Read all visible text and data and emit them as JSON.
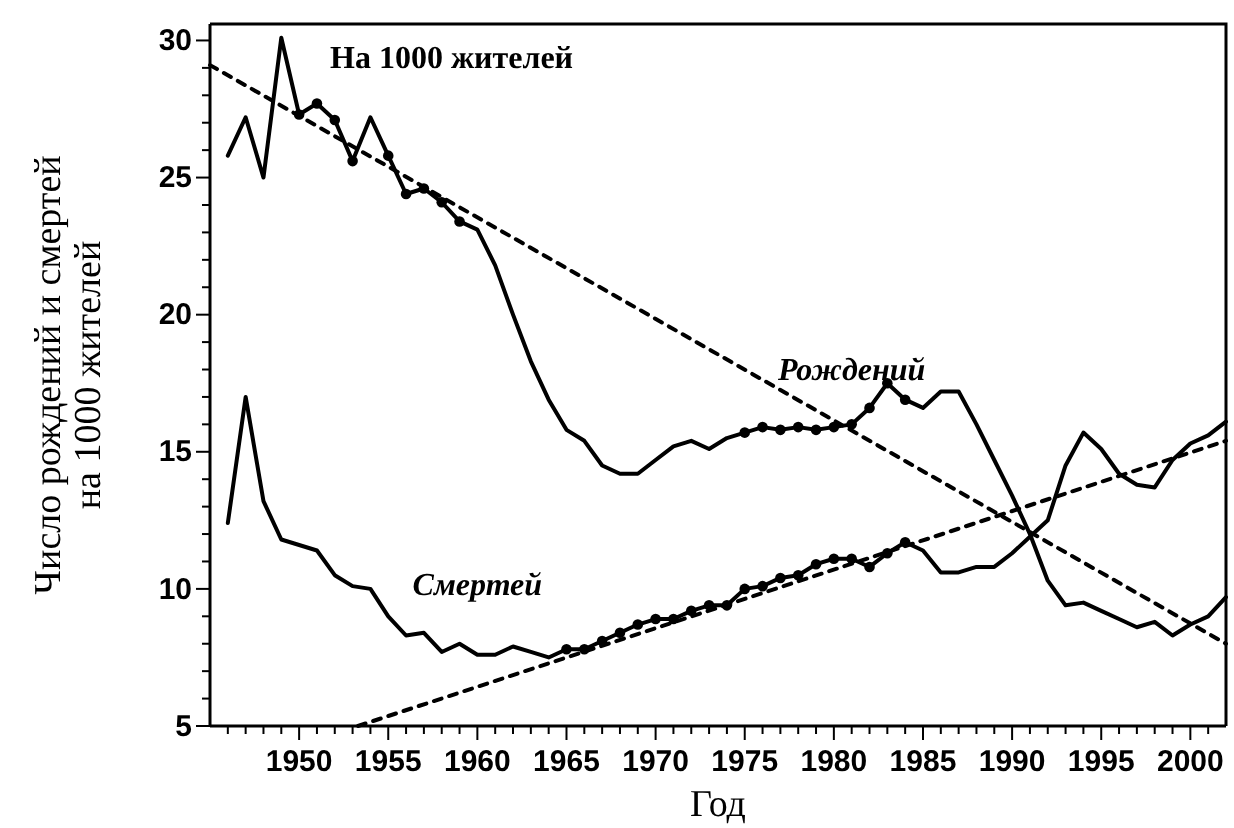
{
  "chart_data": {
    "type": "line",
    "title": "На 1000 жителей",
    "xlabel": "Год",
    "ylabel": "Число рождений и смертей на 1000 жителей",
    "xlim": [
      1945,
      2002
    ],
    "ylim": [
      5,
      30.6
    ],
    "xticks": [
      {
        "value": 1946,
        "label": null
      },
      {
        "value": 1947,
        "label": null
      },
      {
        "value": 1948,
        "label": null
      },
      {
        "value": 1949,
        "label": null
      },
      1950,
      {
        "value": 1951,
        "label": null
      },
      {
        "value": 1952,
        "label": null
      },
      {
        "value": 1953,
        "label": null
      },
      {
        "value": 1954,
        "label": null
      },
      1955,
      {
        "value": 1956,
        "label": null
      },
      {
        "value": 1957,
        "label": null
      },
      {
        "value": 1958,
        "label": null
      },
      {
        "value": 1959,
        "label": null
      },
      1960,
      {
        "value": 1961,
        "label": null
      },
      {
        "value": 1962,
        "label": null
      },
      {
        "value": 1963,
        "label": null
      },
      {
        "value": 1964,
        "label": null
      },
      1965,
      {
        "value": 1966,
        "label": null
      },
      {
        "value": 1967,
        "label": null
      },
      {
        "value": 1968,
        "label": null
      },
      {
        "value": 1969,
        "label": null
      },
      1970,
      {
        "value": 1971,
        "label": null
      },
      {
        "value": 1972,
        "label": null
      },
      {
        "value": 1973,
        "label": null
      },
      {
        "value": 1974,
        "label": null
      },
      1975,
      {
        "value": 1976,
        "label": null
      },
      {
        "value": 1977,
        "label": null
      },
      {
        "value": 1978,
        "label": null
      },
      {
        "value": 1979,
        "label": null
      },
      1980,
      {
        "value": 1981,
        "label": null
      },
      {
        "value": 1982,
        "label": null
      },
      {
        "value": 1983,
        "label": null
      },
      {
        "value": 1984,
        "label": null
      },
      1985,
      {
        "value": 1986,
        "label": null
      },
      {
        "value": 1987,
        "label": null
      },
      {
        "value": 1988,
        "label": null
      },
      {
        "value": 1989,
        "label": null
      },
      1990,
      {
        "value": 1991,
        "label": null
      },
      {
        "value": 1992,
        "label": null
      },
      {
        "value": 1993,
        "label": null
      },
      {
        "value": 1994,
        "label": null
      },
      1995,
      {
        "value": 1996,
        "label": null
      },
      {
        "value": 1997,
        "label": null
      },
      {
        "value": 1998,
        "label": null
      },
      {
        "value": 1999,
        "label": null
      },
      2000,
      {
        "value": 2001,
        "label": null
      }
    ],
    "yticks": [
      5,
      {
        "value": 6,
        "label": null
      },
      {
        "value": 7,
        "label": null
      },
      {
        "value": 8,
        "label": null
      },
      {
        "value": 9,
        "label": null
      },
      10,
      {
        "value": 11,
        "label": null
      },
      {
        "value": 12,
        "label": null
      },
      {
        "value": 13,
        "label": null
      },
      {
        "value": 14,
        "label": null
      },
      15,
      {
        "value": 16,
        "label": null
      },
      {
        "value": 17,
        "label": null
      },
      {
        "value": 18,
        "label": null
      },
      {
        "value": 19,
        "label": null
      },
      20,
      {
        "value": 21,
        "label": null
      },
      {
        "value": 22,
        "label": null
      },
      {
        "value": 23,
        "label": null
      },
      {
        "value": 24,
        "label": null
      },
      25,
      {
        "value": 26,
        "label": null
      },
      {
        "value": 27,
        "label": null
      },
      {
        "value": 28,
        "label": null
      },
      {
        "value": 29,
        "label": null
      },
      30
    ],
    "grid": false,
    "marker": "none",
    "line_style": "solid",
    "series": [
      {
        "name": "Рождений",
        "color": "#000000",
        "x": [
          1946,
          1947,
          1948,
          1949,
          1950,
          1951,
          1952,
          1953,
          1954,
          1955,
          1956,
          1957,
          1958,
          1959,
          1960,
          1961,
          1962,
          1963,
          1964,
          1965,
          1966,
          1967,
          1968,
          1969,
          1970,
          1971,
          1972,
          1973,
          1974,
          1975,
          1976,
          1977,
          1978,
          1979,
          1980,
          1981,
          1982,
          1983,
          1984,
          1985,
          1986,
          1987,
          1988,
          1989,
          1990,
          1991,
          1992,
          1993,
          1994,
          1995,
          1996,
          1997,
          1998,
          1999,
          2000,
          2001,
          2002
        ],
        "values": [
          25.8,
          27.2,
          25.0,
          30.1,
          27.3,
          27.7,
          27.1,
          25.6,
          27.2,
          25.8,
          24.4,
          24.6,
          24.1,
          23.4,
          23.1,
          21.8,
          20.0,
          18.3,
          16.9,
          15.8,
          15.4,
          14.5,
          14.2,
          14.2,
          14.7,
          15.2,
          15.4,
          15.1,
          15.5,
          15.7,
          15.9,
          15.8,
          15.9,
          15.8,
          15.9,
          16.0,
          16.6,
          17.5,
          16.9,
          16.6,
          17.2,
          17.2,
          16.0,
          14.7,
          13.4,
          12.0,
          10.3,
          9.4,
          9.5,
          9.2,
          8.9,
          8.6,
          8.8,
          8.3,
          8.7,
          9.0,
          9.7
        ]
      },
      {
        "name": "Смертей",
        "color": "#000000",
        "x": [
          1946,
          1947,
          1948,
          1949,
          1950,
          1951,
          1952,
          1953,
          1954,
          1955,
          1956,
          1957,
          1958,
          1959,
          1960,
          1961,
          1962,
          1963,
          1964,
          1965,
          1966,
          1967,
          1968,
          1969,
          1970,
          1971,
          1972,
          1973,
          1974,
          1975,
          1976,
          1977,
          1978,
          1979,
          1980,
          1981,
          1982,
          1983,
          1984,
          1985,
          1986,
          1987,
          1988,
          1989,
          1990,
          1991,
          1992,
          1993,
          1994,
          1995,
          1996,
          1997,
          1998,
          1999,
          2000,
          2001,
          2002
        ],
        "values": [
          12.4,
          17.0,
          13.2,
          11.8,
          11.6,
          11.4,
          10.5,
          10.1,
          10.0,
          9.0,
          8.3,
          8.4,
          7.7,
          8.0,
          7.6,
          7.6,
          7.9,
          7.7,
          7.5,
          7.8,
          7.8,
          8.1,
          8.4,
          8.7,
          8.9,
          8.9,
          9.2,
          9.4,
          9.4,
          10.0,
          10.1,
          10.4,
          10.5,
          10.9,
          11.1,
          11.1,
          10.8,
          11.3,
          11.7,
          11.4,
          10.6,
          10.6,
          10.8,
          10.8,
          11.3,
          11.9,
          12.5,
          14.5,
          15.7,
          15.1,
          14.2,
          13.8,
          13.7,
          14.7,
          15.3,
          15.6,
          16.1
        ]
      },
      {
        "type": "scatter",
        "marker": "circle",
        "color": "#000000",
        "x": [
          1950,
          1951,
          1952,
          1953,
          1955,
          1956,
          1957,
          1958,
          1959,
          1975,
          1976,
          1977,
          1978,
          1979,
          1980,
          1981,
          1982,
          1983,
          1984
        ],
        "values": [
          27.3,
          27.7,
          27.1,
          25.6,
          25.8,
          24.4,
          24.6,
          24.1,
          23.4,
          15.7,
          15.9,
          15.8,
          15.9,
          15.8,
          15.9,
          16.0,
          16.6,
          17.5,
          16.9
        ]
      },
      {
        "type": "scatter",
        "marker": "circle",
        "color": "#000000",
        "x": [
          1965,
          1966,
          1967,
          1968,
          1969,
          1970,
          1971,
          1972,
          1973,
          1974,
          1975,
          1976,
          1977,
          1978,
          1979,
          1980,
          1981,
          1982,
          1983,
          1984
        ],
        "values": [
          7.8,
          7.8,
          8.1,
          8.4,
          8.7,
          8.9,
          8.9,
          9.2,
          9.4,
          9.4,
          10.0,
          10.1,
          10.4,
          10.5,
          10.9,
          11.1,
          11.1,
          10.8,
          11.3,
          11.7
        ]
      },
      {
        "type": "line",
        "line_style": "dashed",
        "color": "#000000",
        "x": [
          1945,
          2002
        ],
        "values": [
          29.1,
          8.0
        ]
      },
      {
        "type": "line",
        "line_style": "dashed",
        "color": "#000000",
        "x": [
          1953.3,
          2002
        ],
        "values": [
          5.0,
          15.4
        ]
      }
    ]
  }
}
